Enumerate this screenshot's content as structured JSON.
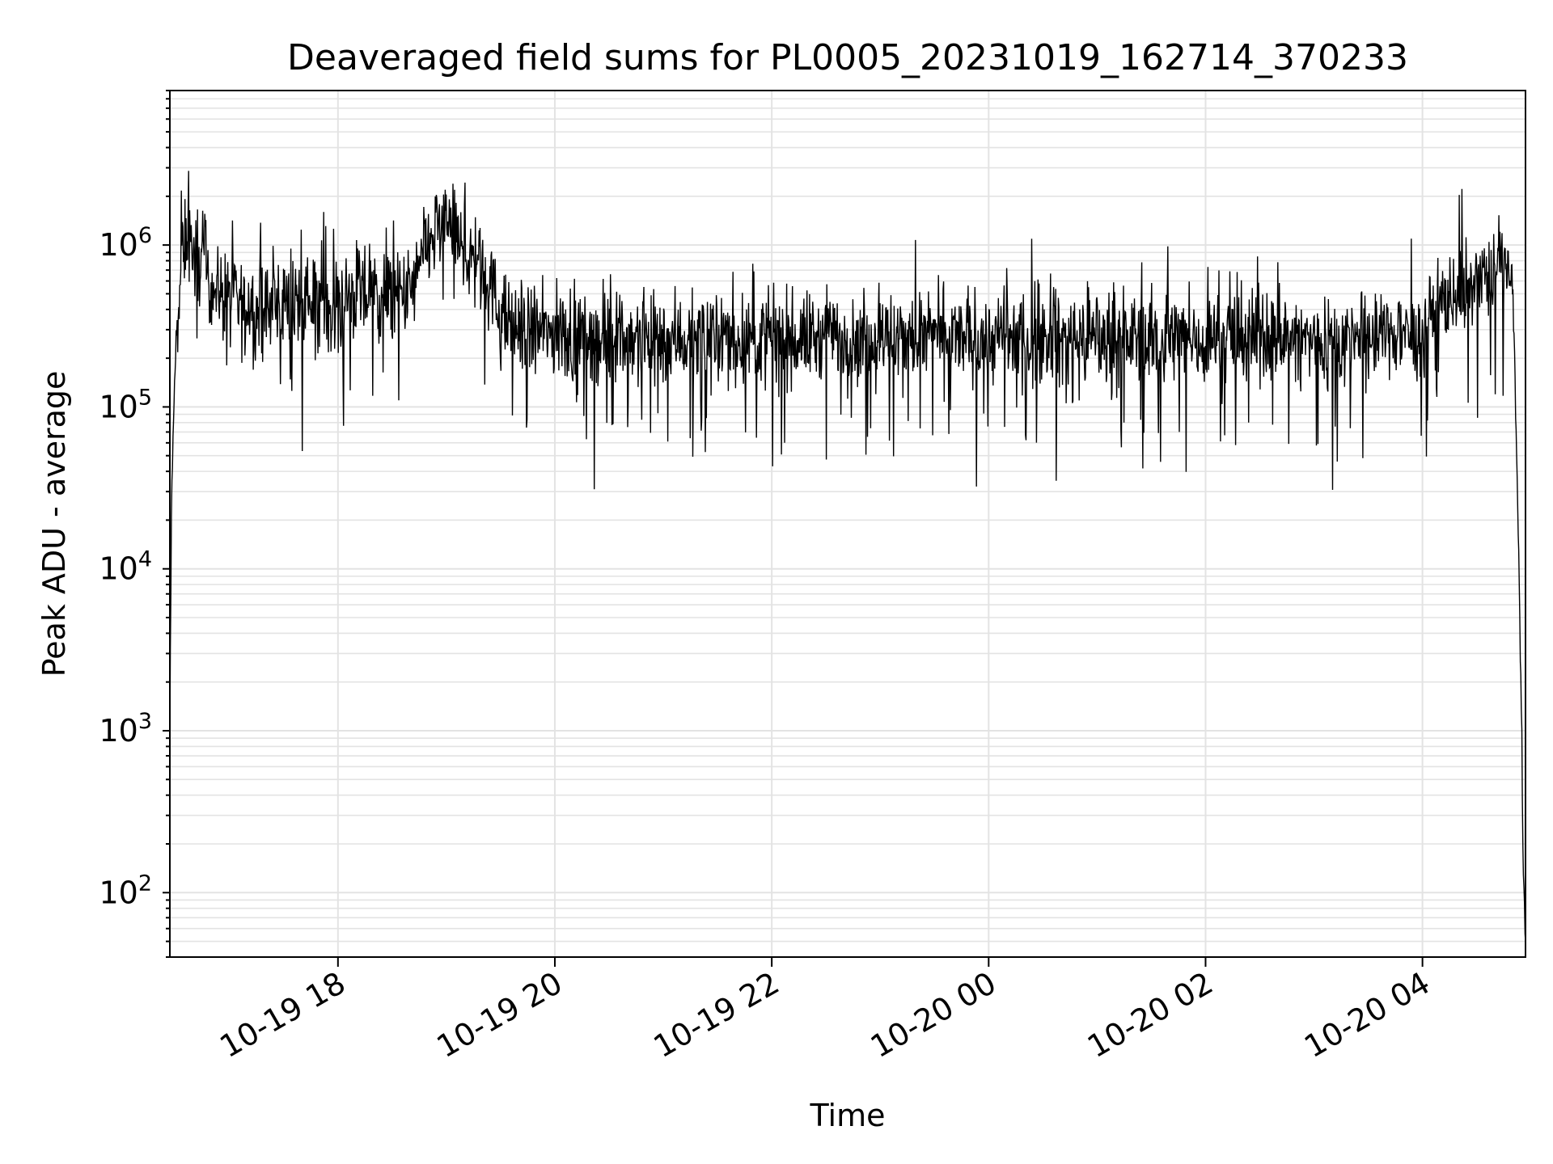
{
  "chart_data": {
    "type": "line",
    "title": "Deaveraged field sums for PL0005_20231019_162714_370233",
    "xlabel": "Time",
    "ylabel": "Peak ADU - average",
    "yscale": "log",
    "ylim": [
      40,
      9000000
    ],
    "xlim": [
      "2023-10-19 16:27",
      "2023-10-20 04:57"
    ],
    "grid": true,
    "line_color": "#000000",
    "grid_color": "#e3e3e3",
    "x_ticks": [
      {
        "value": "2023-10-19 18:00",
        "label": "10-19 18"
      },
      {
        "value": "2023-10-19 20:00",
        "label": "10-19 20"
      },
      {
        "value": "2023-10-19 22:00",
        "label": "10-19 22"
      },
      {
        "value": "2023-10-20 00:00",
        "label": "10-20 00"
      },
      {
        "value": "2023-10-20 02:00",
        "label": "10-20 02"
      },
      {
        "value": "2023-10-20 04:00",
        "label": "10-20 04"
      }
    ],
    "y_ticks": [
      {
        "value": 100,
        "base": "10",
        "exp": "2"
      },
      {
        "value": 1000,
        "base": "10",
        "exp": "3"
      },
      {
        "value": 10000,
        "base": "10",
        "exp": "4"
      },
      {
        "value": 100000,
        "base": "10",
        "exp": "5"
      },
      {
        "value": 1000000,
        "base": "10",
        "exp": "6"
      }
    ],
    "series": [
      {
        "x": [
          "2023-10-19 16:27",
          "2023-10-19 16:28",
          "2023-10-19 16:30",
          "2023-10-19 16:33",
          "2023-10-19 16:36",
          "2023-10-19 16:40",
          "2023-10-19 16:45",
          "2023-10-19 16:50",
          "2023-10-19 16:55",
          "2023-10-19 17:00",
          "2023-10-19 17:10",
          "2023-10-19 17:20",
          "2023-10-19 17:30",
          "2023-10-19 17:40",
          "2023-10-19 17:50",
          "2023-10-19 18:00",
          "2023-10-19 18:10",
          "2023-10-19 18:20",
          "2023-10-19 18:30",
          "2023-10-19 18:40",
          "2023-10-19 18:50",
          "2023-10-19 19:00",
          "2023-10-19 19:10",
          "2023-10-19 19:20",
          "2023-10-19 19:30",
          "2023-10-19 19:40",
          "2023-10-19 20:00",
          "2023-10-19 20:30",
          "2023-10-19 21:00",
          "2023-10-19 21:30",
          "2023-10-19 22:00",
          "2023-10-19 22:30",
          "2023-10-19 23:00",
          "2023-10-19 23:30",
          "2023-10-20 00:00",
          "2023-10-20 00:30",
          "2023-10-20 01:00",
          "2023-10-20 01:30",
          "2023-10-20 02:00",
          "2023-10-20 02:30",
          "2023-10-20 03:00",
          "2023-10-20 03:30",
          "2023-10-20 04:00",
          "2023-10-20 04:15",
          "2023-10-20 04:30",
          "2023-10-20 04:40",
          "2023-10-20 04:45",
          "2023-10-20 04:50",
          "2023-10-20 04:52",
          "2023-10-20 04:54",
          "2023-10-20 04:56",
          "2023-10-20 04:57"
        ],
        "y": [
          900,
          30000,
          200000,
          700000,
          1200000,
          900000,
          800000,
          600000,
          500000,
          450000,
          400000,
          420000,
          450000,
          430000,
          480000,
          420000,
          500000,
          520000,
          460000,
          500000,
          1000000,
          1500000,
          900000,
          800000,
          350000,
          300000,
          280000,
          270000,
          270000,
          260000,
          260000,
          270000,
          265000,
          270000,
          260000,
          265000,
          270000,
          265000,
          260000,
          270000,
          260000,
          265000,
          300000,
          500000,
          550000,
          700000,
          900000,
          500000,
          60000,
          5000,
          100,
          45
        ]
      }
    ]
  }
}
